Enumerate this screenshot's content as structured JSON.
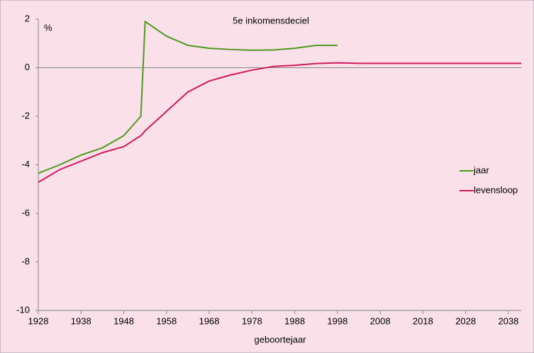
{
  "chart_data": {
    "type": "line",
    "title": "5e inkomensdeciel",
    "y_label": "%",
    "x_label": "geboortejaar",
    "x": [
      1928,
      1933,
      1938,
      1943,
      1948,
      1952,
      1953,
      1958,
      1963,
      1968,
      1973,
      1978,
      1983,
      1988,
      1993,
      1998,
      2003,
      2008,
      2013,
      2018,
      2023,
      2028,
      2033,
      2038,
      2041
    ],
    "series": [
      {
        "name": "jaar",
        "color": "#4e9a1e",
        "values": [
          -4.35,
          -4.0,
          -3.6,
          -3.3,
          -2.8,
          -2.0,
          1.9,
          1.3,
          0.92,
          0.8,
          0.75,
          0.72,
          0.73,
          0.8,
          0.92,
          0.92,
          null,
          null,
          null,
          null,
          null,
          null,
          null,
          null,
          null
        ]
      },
      {
        "name": "levensloop",
        "color": "#d0195f",
        "values": [
          -4.72,
          -4.2,
          -3.85,
          -3.5,
          -3.25,
          -2.8,
          -2.6,
          -1.8,
          -1.0,
          -0.55,
          -0.3,
          -0.1,
          0.05,
          0.1,
          0.17,
          0.2,
          0.18,
          0.18,
          0.18,
          0.18,
          0.18,
          0.18,
          0.18,
          0.18,
          0.18
        ]
      }
    ],
    "xlim": [
      1928,
      2041
    ],
    "xticks": [
      1928,
      1938,
      1948,
      1958,
      1968,
      1978,
      1988,
      1998,
      2008,
      2018,
      2028,
      2038
    ],
    "ylim": [
      -10,
      2
    ],
    "yticks": [
      -10,
      -8,
      -6,
      -4,
      -2,
      0,
      2
    ],
    "grid": false,
    "legend": "right"
  }
}
